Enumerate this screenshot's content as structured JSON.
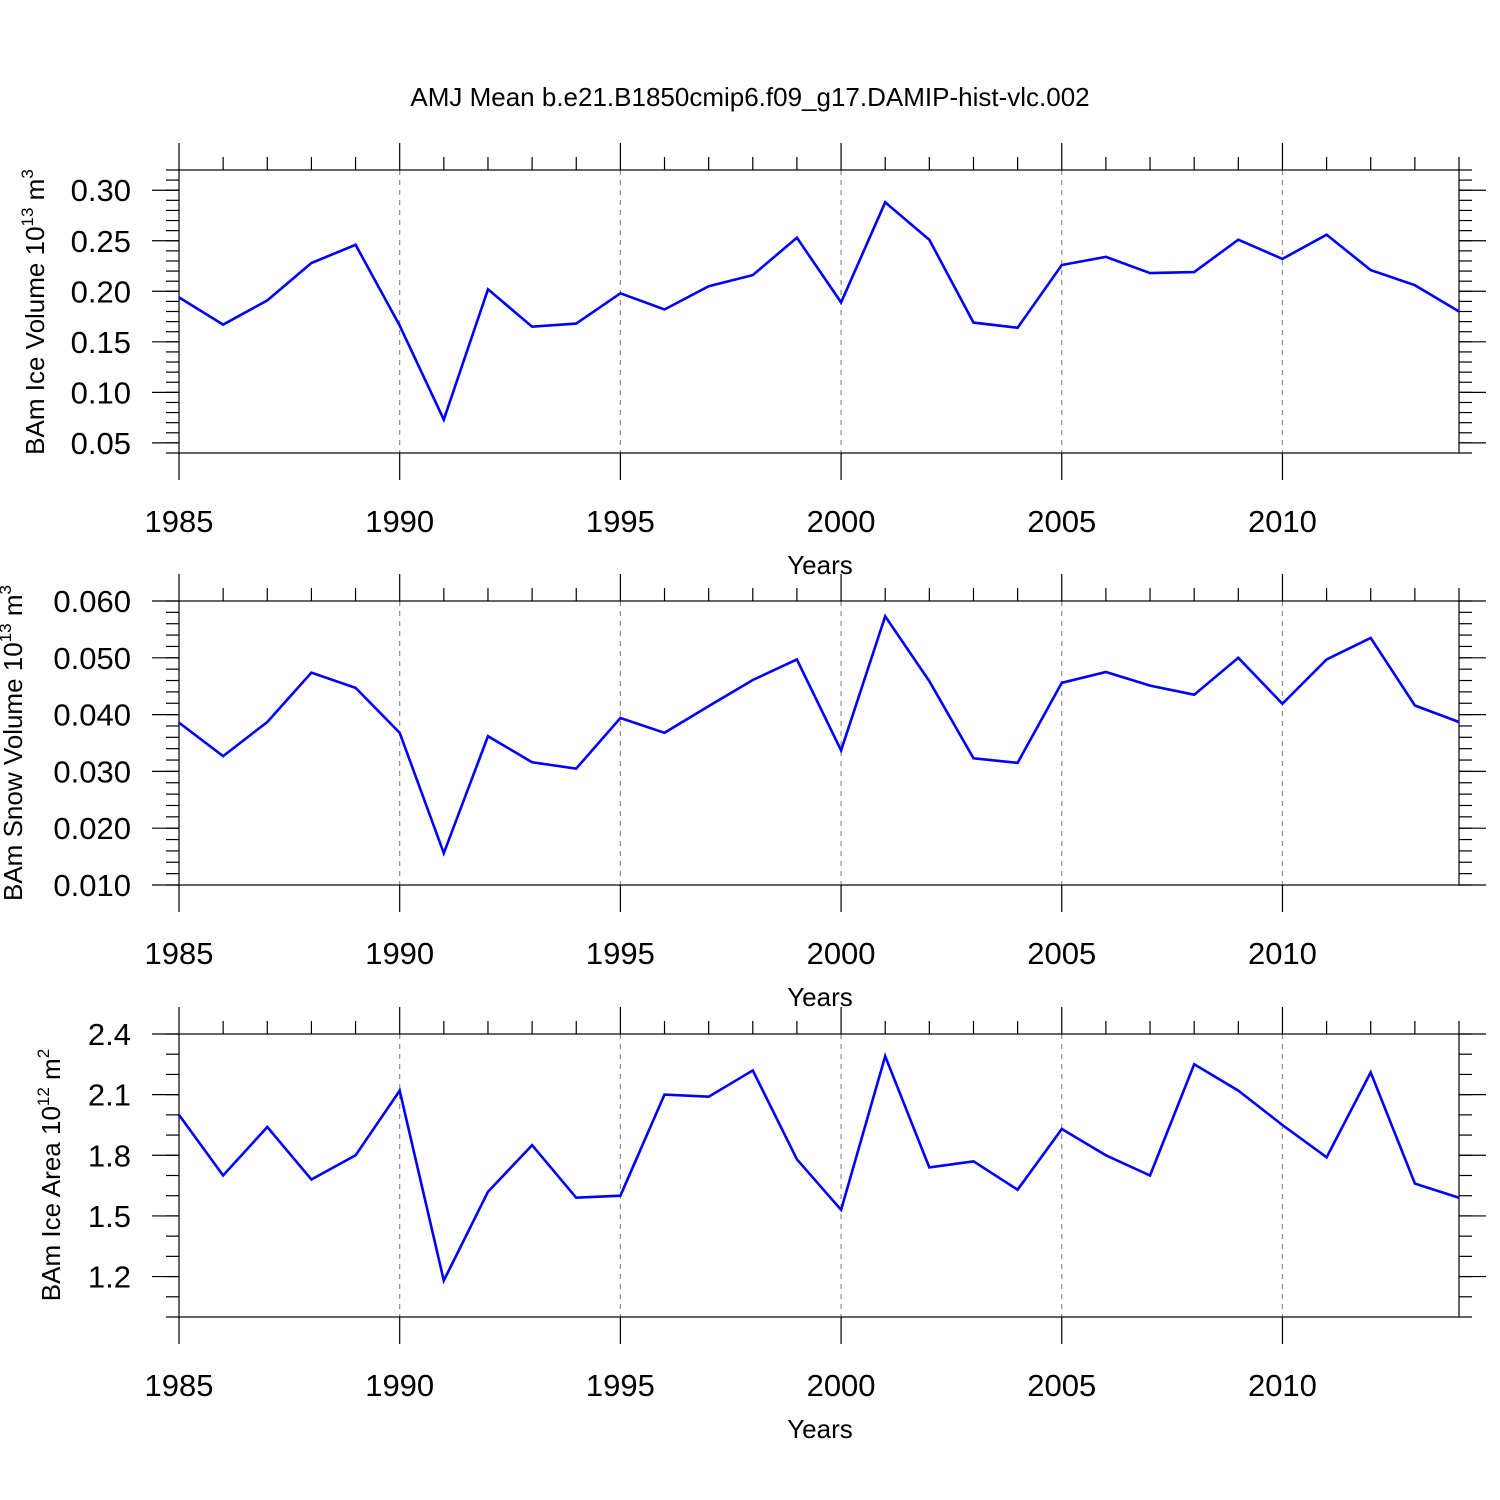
{
  "figure": {
    "title": "AMJ Mean b.e21.B1850cmip6.f09_g17.DAMIP-hist-vlc.002",
    "line_color": "#0000ff"
  },
  "chart_data": [
    {
      "type": "line",
      "title": "",
      "xlabel": "Years",
      "ylabel": "BAm Ice Volume 10",
      "ylabel_exp": "13",
      "ylabel_unit": "m",
      "ylabel_unit_exp": "3",
      "xlim": [
        1985,
        2014
      ],
      "ylim": [
        0.04,
        0.32
      ],
      "xticks": [
        1985,
        1990,
        1995,
        2000,
        2005,
        2010
      ],
      "yticks": [
        0.05,
        0.1,
        0.15,
        0.2,
        0.25,
        0.3
      ],
      "ytick_labels": [
        "0.05",
        "0.10",
        "0.15",
        "0.20",
        "0.25",
        "0.30"
      ],
      "ytick_minor_step": 0.01,
      "grid_x": [
        1990,
        1995,
        2000,
        2005,
        2010
      ],
      "x": [
        1985,
        1986,
        1987,
        1988,
        1989,
        1990,
        1991,
        1992,
        1993,
        1994,
        1995,
        1996,
        1997,
        1998,
        1999,
        2000,
        2001,
        2002,
        2003,
        2004,
        2005,
        2006,
        2007,
        2008,
        2009,
        2010,
        2011,
        2012,
        2013,
        2014
      ],
      "series": [
        {
          "name": "BAm Ice Volume",
          "values": [
            0.194,
            0.167,
            0.191,
            0.228,
            0.246,
            0.166,
            0.073,
            0.202,
            0.165,
            0.168,
            0.198,
            0.182,
            0.205,
            0.216,
            0.253,
            0.189,
            0.288,
            0.251,
            0.169,
            0.164,
            0.226,
            0.234,
            0.218,
            0.219,
            0.251,
            0.232,
            0.256,
            0.221,
            0.206,
            0.18
          ]
        }
      ]
    },
    {
      "type": "line",
      "title": "",
      "xlabel": "Years",
      "ylabel": "BAm Snow Volume 10",
      "ylabel_exp": "13",
      "ylabel_unit": "m",
      "ylabel_unit_exp": "3",
      "xlim": [
        1985,
        2014
      ],
      "ylim": [
        0.01,
        0.06
      ],
      "xticks": [
        1985,
        1990,
        1995,
        2000,
        2005,
        2010
      ],
      "yticks": [
        0.01,
        0.02,
        0.03,
        0.04,
        0.05,
        0.06
      ],
      "ytick_labels": [
        "0.010",
        "0.020",
        "0.030",
        "0.040",
        "0.050",
        "0.060"
      ],
      "ytick_minor_step": 0.002,
      "grid_x": [
        1990,
        1995,
        2000,
        2005,
        2010
      ],
      "x": [
        1985,
        1986,
        1987,
        1988,
        1989,
        1990,
        1991,
        1992,
        1993,
        1994,
        1995,
        1996,
        1997,
        1998,
        1999,
        2000,
        2001,
        2002,
        2003,
        2004,
        2005,
        2006,
        2007,
        2008,
        2009,
        2010,
        2011,
        2012,
        2013,
        2014
      ],
      "series": [
        {
          "name": "BAm Snow Volume",
          "values": [
            0.0386,
            0.0327,
            0.0387,
            0.0474,
            0.0447,
            0.0368,
            0.0156,
            0.0362,
            0.0316,
            0.0305,
            0.0394,
            0.0368,
            0.0415,
            0.0461,
            0.0497,
            0.0337,
            0.0573,
            0.0459,
            0.0323,
            0.0315,
            0.0456,
            0.0475,
            0.0451,
            0.0435,
            0.05,
            0.0419,
            0.0497,
            0.0535,
            0.0416,
            0.0387
          ]
        }
      ]
    },
    {
      "type": "line",
      "title": "",
      "xlabel": "Years",
      "ylabel": "BAm Ice Area 10",
      "ylabel_exp": "12",
      "ylabel_unit": "m",
      "ylabel_unit_exp": "2",
      "xlim": [
        1985,
        2014
      ],
      "ylim": [
        1.0,
        2.4
      ],
      "xticks": [
        1985,
        1990,
        1995,
        2000,
        2005,
        2010
      ],
      "yticks": [
        1.2,
        1.5,
        1.8,
        2.1,
        2.4
      ],
      "ytick_labels": [
        "1.2",
        "1.5",
        "1.8",
        "2.1",
        "2.4"
      ],
      "ytick_minor_step": 0.1,
      "grid_x": [
        1990,
        1995,
        2000,
        2005,
        2010
      ],
      "x": [
        1985,
        1986,
        1987,
        1988,
        1989,
        1990,
        1991,
        1992,
        1993,
        1994,
        1995,
        1996,
        1997,
        1998,
        1999,
        2000,
        2001,
        2002,
        2003,
        2004,
        2005,
        2006,
        2007,
        2008,
        2009,
        2010,
        2011,
        2012,
        2013,
        2014
      ],
      "series": [
        {
          "name": "BAm Ice Area",
          "values": [
            2.0,
            1.7,
            1.94,
            1.68,
            1.8,
            2.12,
            1.18,
            1.62,
            1.85,
            1.59,
            1.6,
            2.1,
            2.09,
            2.22,
            1.78,
            1.53,
            2.29,
            1.74,
            1.77,
            1.63,
            1.93,
            1.8,
            1.7,
            2.25,
            2.12,
            1.95,
            1.79,
            2.21,
            1.66,
            1.59
          ]
        }
      ]
    }
  ]
}
